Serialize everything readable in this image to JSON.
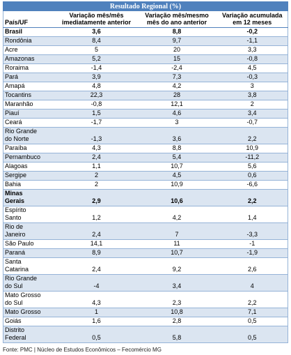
{
  "table": {
    "title": "Resultado Regional (%)",
    "columns": [
      "País/UF",
      "Variação mês/mês imediatamente anterior",
      "Variação mês/mesmo mês do ano anterior",
      "Variação acumulada em 12 meses"
    ],
    "rows": [
      [
        "Brasil",
        "3,6",
        "8,8",
        "-0,2"
      ],
      [
        "Rondônia",
        "8,4",
        "9,7",
        "-1,1"
      ],
      [
        "Acre",
        "5",
        "20",
        "3,3"
      ],
      [
        "Amazonas",
        "5,2",
        "15",
        "-0,8"
      ],
      [
        "Roraima",
        "-1,4",
        "-2,4",
        "4,5"
      ],
      [
        "Pará",
        "3,9",
        "7,3",
        "-0,3"
      ],
      [
        "Amapá",
        "4,8",
        "4,2",
        "3"
      ],
      [
        "Tocantins",
        "22,3",
        "28",
        "3,8"
      ],
      [
        "Maranhão",
        "-0,8",
        "12,1",
        "2"
      ],
      [
        "Piauí",
        "1,5",
        "4,6",
        "3,4"
      ],
      [
        "Ceará",
        "-1,7",
        "3",
        "-0,7"
      ],
      [
        "Rio Grande do Norte",
        "-1,3",
        "3,6",
        "2,2"
      ],
      [
        "Paraíba",
        "4,3",
        "8,8",
        "10,9"
      ],
      [
        "Pernambuco",
        "2,4",
        "5,4",
        "-11,2"
      ],
      [
        "Alagoas",
        "1,1",
        "10,7",
        "5,6"
      ],
      [
        "Sergipe",
        "2",
        "4,5",
        "0,6"
      ],
      [
        "Bahia",
        "2",
        "10,9",
        "-6,6"
      ],
      [
        "Minas Gerais",
        "2,9",
        "10,6",
        "2,2"
      ],
      [
        "Espírito Santo",
        "1,2",
        "4,2",
        "1,4"
      ],
      [
        "Rio de Janeiro",
        "2,4",
        "7",
        "-3,3"
      ],
      [
        "São Paulo",
        "14,1",
        "11",
        "-1"
      ],
      [
        "Paraná",
        "8,9",
        "10,7",
        "-1,9"
      ],
      [
        "Santa Catarina",
        "2,4",
        "9,2",
        "2,6"
      ],
      [
        "Rio Grande do Sul",
        "-4",
        "3,4",
        "4"
      ],
      [
        "Mato Grosso do Sul",
        "4,3",
        "2,3",
        "2,2"
      ],
      [
        "Mato Grosso",
        "1",
        "10,8",
        "7,1"
      ],
      [
        "Goiás",
        "1,6",
        "2,8",
        "0,5"
      ],
      [
        "Distrito Federal",
        "0,5",
        "5,8",
        "0,5"
      ]
    ]
  },
  "source": "Fonte: PMC | Núcleo de Estudos Econômicos – Fecomércio MG"
}
